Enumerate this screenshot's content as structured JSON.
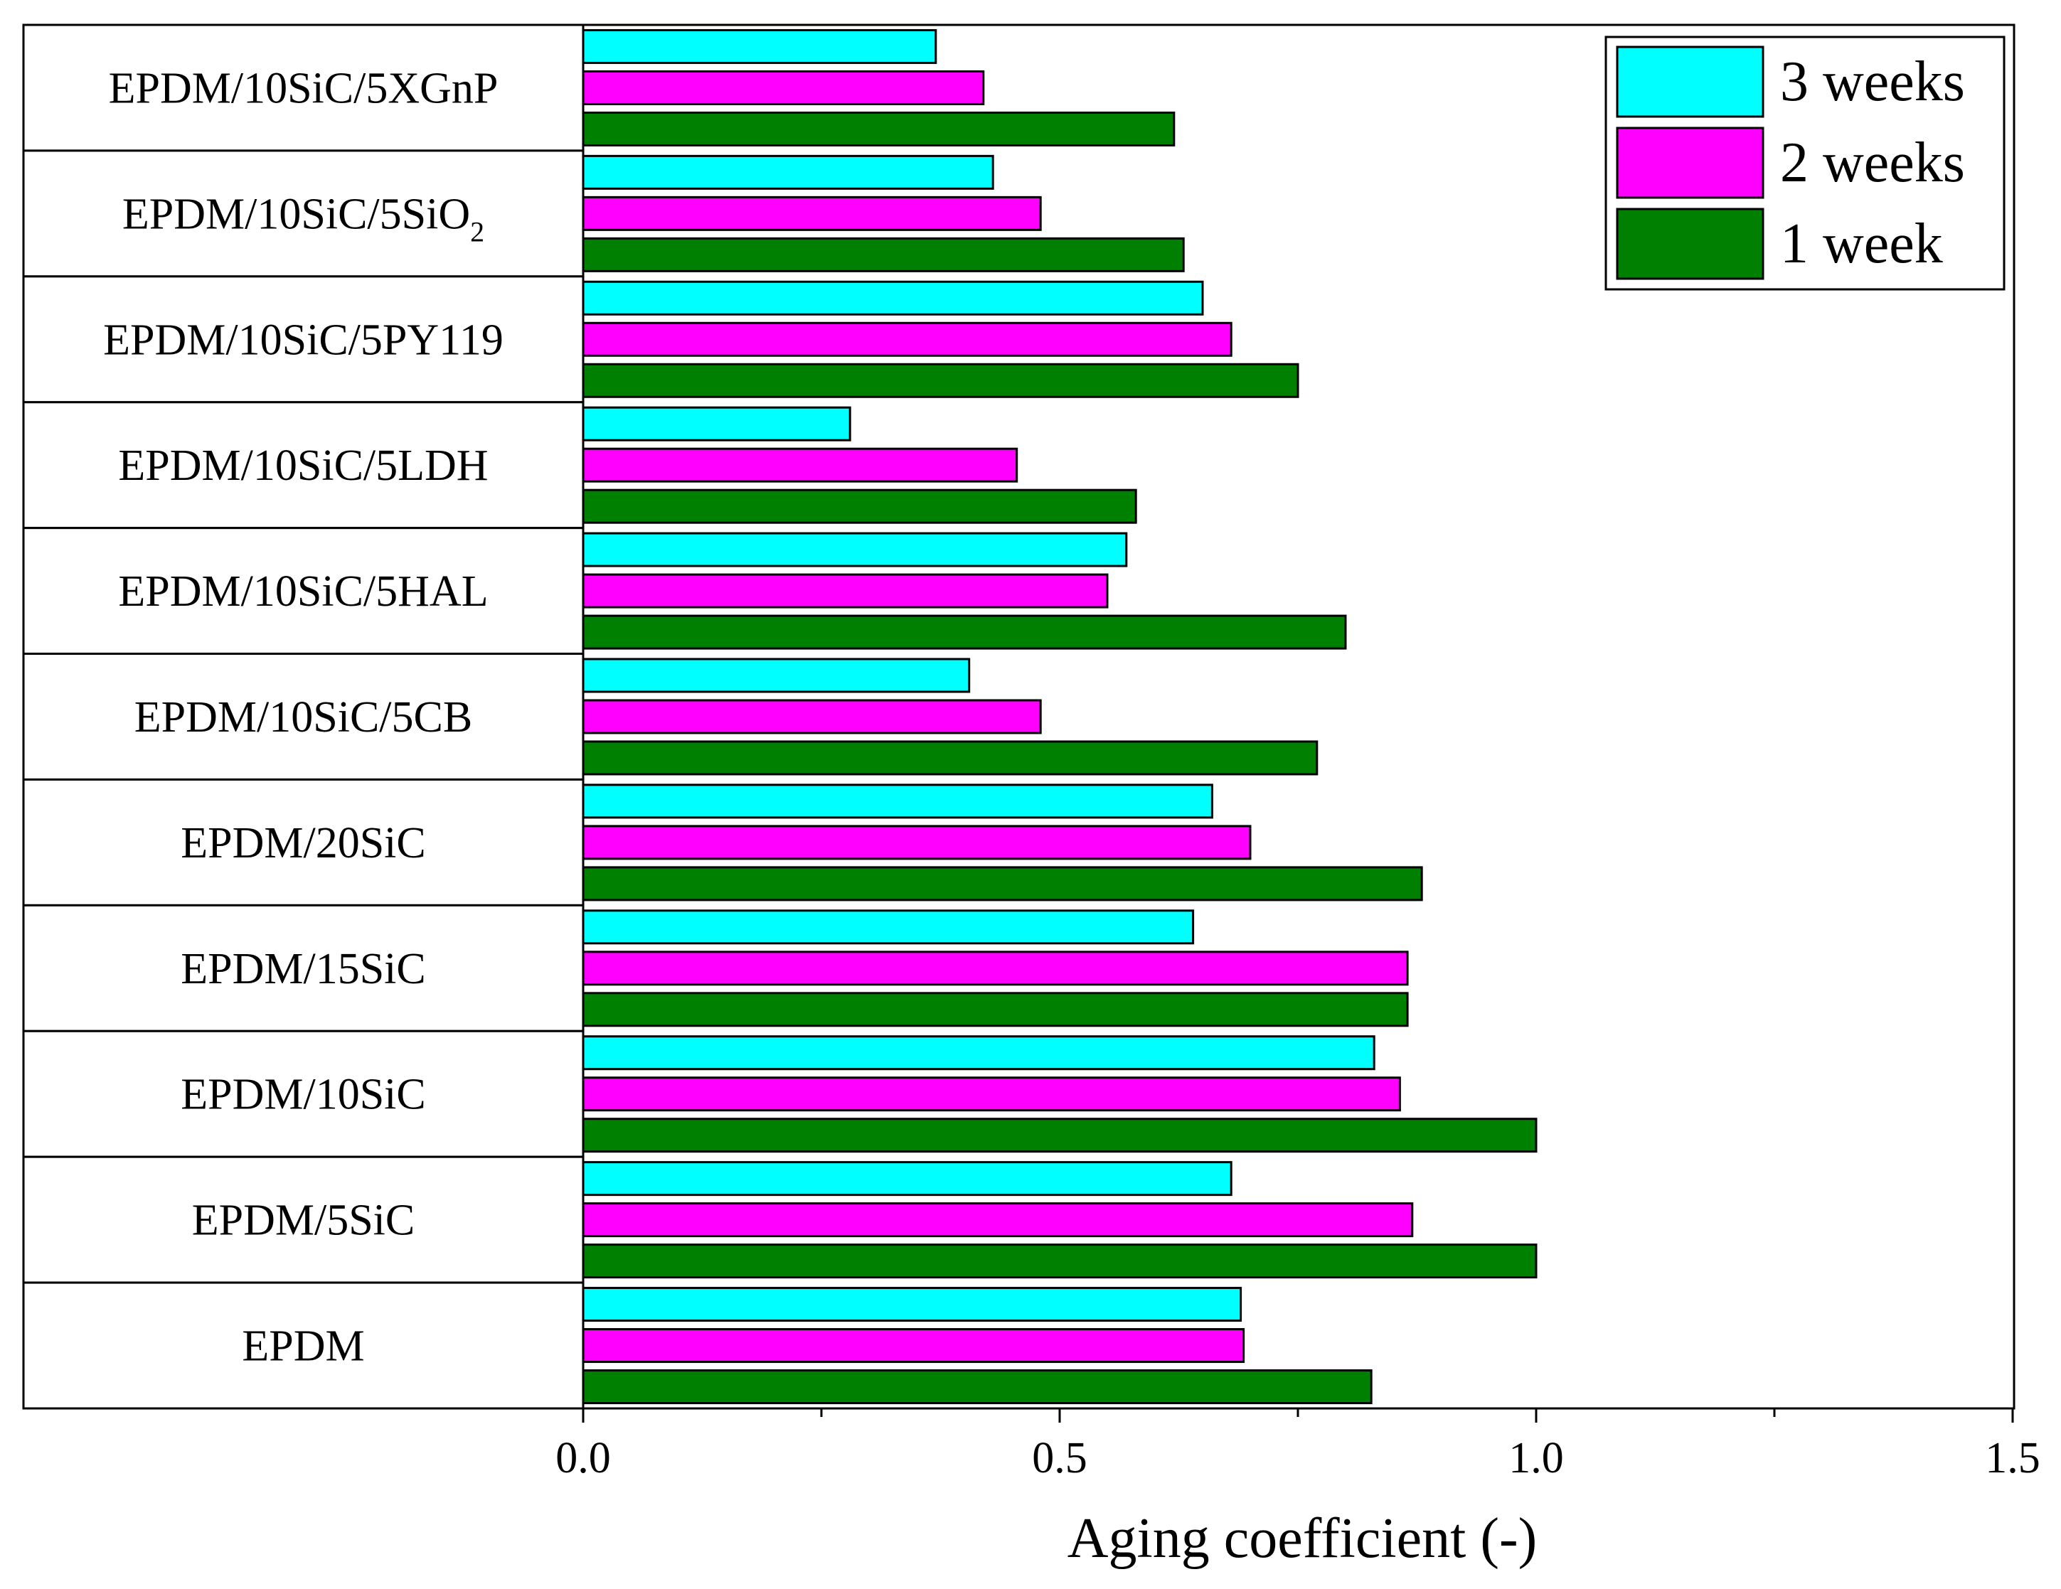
{
  "chart_data": {
    "type": "bar",
    "orientation": "horizontal",
    "title": "",
    "xlabel": "Aging coefficient (-)",
    "ylabel": "",
    "xlim": [
      0,
      1.5
    ],
    "x_ticks": [
      "0.0",
      "0.5",
      "1.0",
      "1.5"
    ],
    "x_tick_values": [
      0,
      0.5,
      1.0,
      1.5
    ],
    "categories": [
      {
        "base": "EPDM/10SiC/5XGnP",
        "sub": "",
        "tail": ""
      },
      {
        "base": "EPDM/10SiC/5SiO",
        "sub": "2",
        "tail": ""
      },
      {
        "base": "EPDM/10SiC/5PY119",
        "sub": "",
        "tail": ""
      },
      {
        "base": "EPDM/10SiC/5LDH",
        "sub": "",
        "tail": ""
      },
      {
        "base": "EPDM/10SiC/5HAL",
        "sub": "",
        "tail": ""
      },
      {
        "base": "EPDM/10SiC/5CB",
        "sub": "",
        "tail": ""
      },
      {
        "base": "EPDM/20SiC",
        "sub": "",
        "tail": ""
      },
      {
        "base": "EPDM/15SiC",
        "sub": "",
        "tail": ""
      },
      {
        "base": "EPDM/10SiC",
        "sub": "",
        "tail": ""
      },
      {
        "base": "EPDM/5SiC",
        "sub": "",
        "tail": ""
      },
      {
        "base": "EPDM",
        "sub": "",
        "tail": ""
      }
    ],
    "series": [
      {
        "name": "3 weeks",
        "color": "#00FFFF",
        "values": [
          0.37,
          0.43,
          0.65,
          0.28,
          0.57,
          0.405,
          0.66,
          0.64,
          0.83,
          0.68,
          0.69
        ]
      },
      {
        "name": "2 weeks",
        "color": "#FF00FF",
        "values": [
          0.42,
          0.48,
          0.68,
          0.455,
          0.55,
          0.48,
          0.7,
          0.865,
          0.857,
          0.87,
          0.693
        ]
      },
      {
        "name": "1 week",
        "color": "#008000",
        "values": [
          0.62,
          0.63,
          0.75,
          0.58,
          0.8,
          0.77,
          0.88,
          0.865,
          1.0,
          1.0,
          0.827
        ]
      }
    ],
    "legend": {
      "position": "top-right",
      "items": [
        "3 weeks",
        "2 weeks",
        "1 week"
      ]
    },
    "grid": false
  }
}
